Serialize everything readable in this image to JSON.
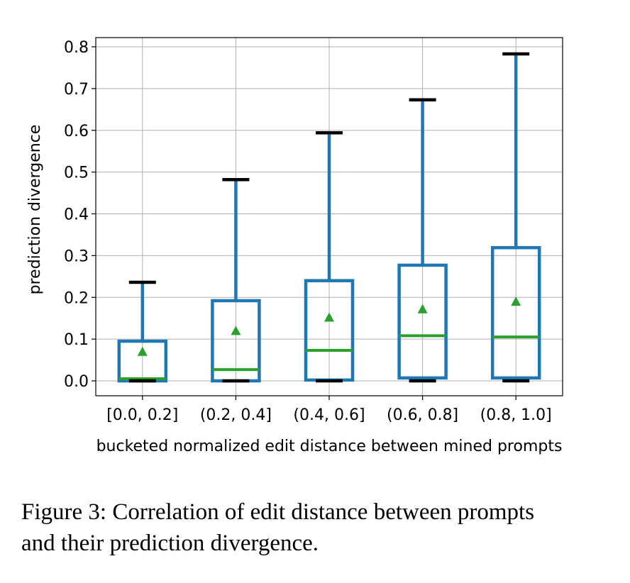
{
  "chart_data": {
    "type": "box",
    "categories": [
      "[0.0, 0.2]",
      "(0.2, 0.4]",
      "(0.4, 0.6]",
      "(0.6, 0.8]",
      "(0.8, 1.0]"
    ],
    "series": [
      {
        "name": "[0.0, 0.2]",
        "whisker_low": 0.0,
        "q1": 0.0,
        "median": 0.005,
        "q3": 0.095,
        "whisker_high": 0.236,
        "mean": 0.07
      },
      {
        "name": "(0.2, 0.4]",
        "whisker_low": 0.0,
        "q1": 0.0,
        "median": 0.027,
        "q3": 0.192,
        "whisker_high": 0.482,
        "mean": 0.12
      },
      {
        "name": "(0.4, 0.6]",
        "whisker_low": 0.0,
        "q1": 0.002,
        "median": 0.073,
        "q3": 0.24,
        "whisker_high": 0.594,
        "mean": 0.152
      },
      {
        "name": "(0.6, 0.8]",
        "whisker_low": 0.0,
        "q1": 0.007,
        "median": 0.108,
        "q3": 0.277,
        "whisker_high": 0.673,
        "mean": 0.172
      },
      {
        "name": "(0.8, 1.0]",
        "whisker_low": 0.0,
        "q1": 0.007,
        "median": 0.105,
        "q3": 0.319,
        "whisker_high": 0.783,
        "mean": 0.19
      }
    ],
    "title": "",
    "xlabel": "bucketed normalized edit distance between mined prompts",
    "ylabel": "prediction divergence",
    "ylim": [
      -0.037,
      0.82
    ],
    "yticks": [
      "0.0",
      "0.1",
      "0.2",
      "0.3",
      "0.4",
      "0.5",
      "0.6",
      "0.7",
      "0.8"
    ],
    "grid": true,
    "colors": {
      "box": "#1f77b4",
      "median": "#2ca02c",
      "mean": "#2ca02c",
      "caps": "#000000",
      "grid": "#b0b0b0"
    }
  },
  "caption": {
    "line1": "Figure 3: Correlation of edit distance between prompts",
    "line2": "and their prediction divergence."
  }
}
